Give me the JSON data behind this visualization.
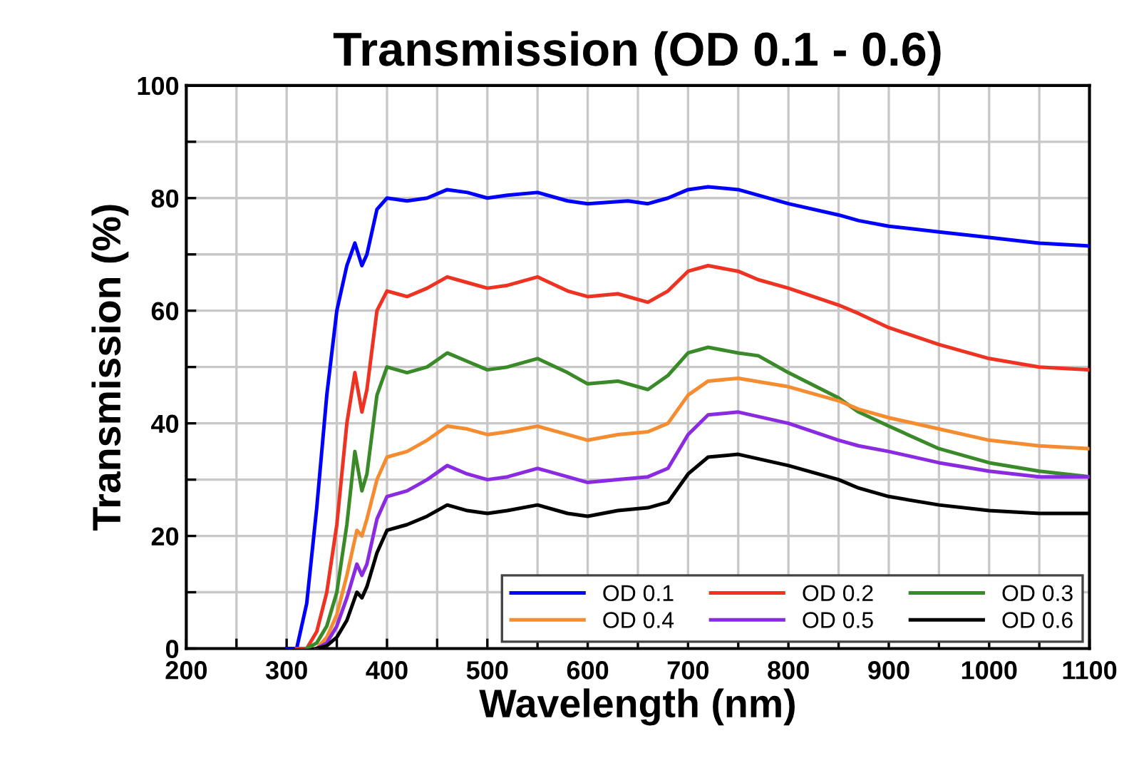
{
  "chart_data": {
    "type": "line",
    "title": "Transmission (OD 0.1 - 0.6)",
    "xlabel": "Wavelength (nm)",
    "ylabel": "Transmission (%)",
    "xlim": [
      200,
      1100
    ],
    "ylim": [
      0,
      100
    ],
    "xticks": [
      200,
      {
        "value": 250,
        "label": null
      },
      300,
      {
        "value": 350,
        "label": null
      },
      400,
      {
        "value": 450,
        "label": null
      },
      500,
      {
        "value": 550,
        "label": null
      },
      600,
      {
        "value": 650,
        "label": null
      },
      700,
      {
        "value": 750,
        "label": null
      },
      800,
      {
        "value": 850,
        "label": null
      },
      900,
      {
        "value": 950,
        "label": null
      },
      1000,
      {
        "value": 1050,
        "label": null
      },
      1100
    ],
    "yticks": [
      0,
      {
        "value": 10,
        "label": null
      },
      20,
      {
        "value": 30,
        "label": null
      },
      40,
      {
        "value": 50,
        "label": null
      },
      60,
      {
        "value": 70,
        "label": null
      },
      80,
      {
        "value": 90,
        "label": null
      },
      100
    ],
    "grid": true,
    "legend": "bottom right",
    "marker": "none",
    "line_style": "solid",
    "series": [
      {
        "name": "OD 0.1",
        "color": "#0000ff",
        "x": [
          300,
          310,
          320,
          330,
          340,
          350,
          360,
          368,
          375,
          380,
          390,
          400,
          420,
          440,
          460,
          480,
          500,
          520,
          550,
          580,
          600,
          640,
          660,
          680,
          700,
          720,
          750,
          800,
          850,
          870,
          900,
          950,
          1000,
          1050,
          1100
        ],
        "values": [
          0,
          0,
          8,
          25,
          45,
          60,
          68,
          72,
          68,
          70,
          78,
          80,
          79.5,
          80,
          81.5,
          81,
          80,
          80.5,
          81,
          79.5,
          79,
          79.5,
          79,
          80,
          81.5,
          82,
          81.5,
          79,
          77,
          76,
          75,
          74,
          73,
          72,
          71.5
        ]
      },
      {
        "name": "OD 0.2",
        "color": "#ee3322",
        "x": [
          310,
          320,
          330,
          340,
          350,
          360,
          368,
          375,
          380,
          390,
          400,
          410,
          420,
          440,
          460,
          480,
          500,
          520,
          550,
          580,
          600,
          630,
          660,
          680,
          700,
          720,
          750,
          770,
          800,
          850,
          870,
          900,
          950,
          1000,
          1050,
          1100
        ],
        "values": [
          0,
          0,
          3,
          10,
          22,
          40,
          49,
          42,
          46,
          60,
          63.5,
          63,
          62.5,
          64,
          66,
          65,
          64,
          64.5,
          66,
          63.5,
          62.5,
          63,
          61.5,
          63.5,
          67,
          68,
          67,
          65.5,
          64,
          61,
          59.5,
          57,
          54,
          51.5,
          50,
          49.5
        ]
      },
      {
        "name": "OD 0.3",
        "color": "#3a8a2a",
        "x": [
          320,
          330,
          340,
          350,
          360,
          368,
          375,
          380,
          390,
          400,
          420,
          440,
          460,
          480,
          500,
          520,
          550,
          580,
          600,
          630,
          660,
          680,
          700,
          720,
          750,
          770,
          800,
          850,
          870,
          900,
          950,
          1000,
          1050,
          1100
        ],
        "values": [
          0,
          1,
          4,
          10,
          22,
          35,
          28,
          31,
          45,
          50,
          49,
          50,
          52.5,
          51,
          49.5,
          50,
          51.5,
          49,
          47,
          47.5,
          46,
          48.5,
          52.5,
          53.5,
          52.5,
          52,
          49,
          44.5,
          42,
          39.5,
          35.5,
          33,
          31.5,
          30.5
        ]
      },
      {
        "name": "OD 0.4",
        "color": "#f58c30",
        "x": [
          330,
          340,
          350,
          360,
          370,
          375,
          380,
          390,
          400,
          420,
          440,
          460,
          480,
          500,
          520,
          550,
          580,
          600,
          630,
          660,
          680,
          700,
          720,
          750,
          800,
          850,
          870,
          900,
          950,
          1000,
          1050,
          1100
        ],
        "values": [
          0,
          2,
          6,
          13,
          21,
          20,
          23,
          30,
          34,
          35,
          37,
          39.5,
          39,
          38,
          38.5,
          39.5,
          38,
          37,
          38,
          38.5,
          40,
          45,
          47.5,
          48,
          46.5,
          44,
          42.5,
          41,
          39,
          37,
          36,
          35.5
        ]
      },
      {
        "name": "OD 0.5",
        "color": "#8a2be2",
        "x": [
          330,
          340,
          350,
          360,
          370,
          375,
          380,
          390,
          400,
          420,
          440,
          460,
          480,
          500,
          520,
          550,
          580,
          600,
          630,
          660,
          680,
          700,
          720,
          750,
          800,
          850,
          870,
          900,
          950,
          1000,
          1050,
          1100
        ],
        "values": [
          0,
          1,
          4,
          9,
          15,
          13,
          15,
          23,
          27,
          28,
          30,
          32.5,
          31,
          30,
          30.5,
          32,
          30.5,
          29.5,
          30,
          30.5,
          32,
          38,
          41.5,
          42,
          40,
          37,
          36,
          35,
          33,
          31.5,
          30.5,
          30.5
        ]
      },
      {
        "name": "OD 0.6",
        "color": "#000000",
        "x": [
          330,
          340,
          350,
          360,
          370,
          375,
          380,
          390,
          400,
          420,
          440,
          460,
          480,
          500,
          520,
          550,
          580,
          600,
          630,
          660,
          680,
          700,
          720,
          750,
          800,
          850,
          870,
          900,
          950,
          1000,
          1050,
          1100
        ],
        "values": [
          0,
          0.5,
          2,
          5,
          10,
          9,
          11,
          17,
          21,
          22,
          23.5,
          25.5,
          24.5,
          24,
          24.5,
          25.5,
          24,
          23.5,
          24.5,
          25,
          26,
          31,
          34,
          34.5,
          32.5,
          30,
          28.5,
          27,
          25.5,
          24.5,
          24,
          24
        ]
      }
    ]
  }
}
